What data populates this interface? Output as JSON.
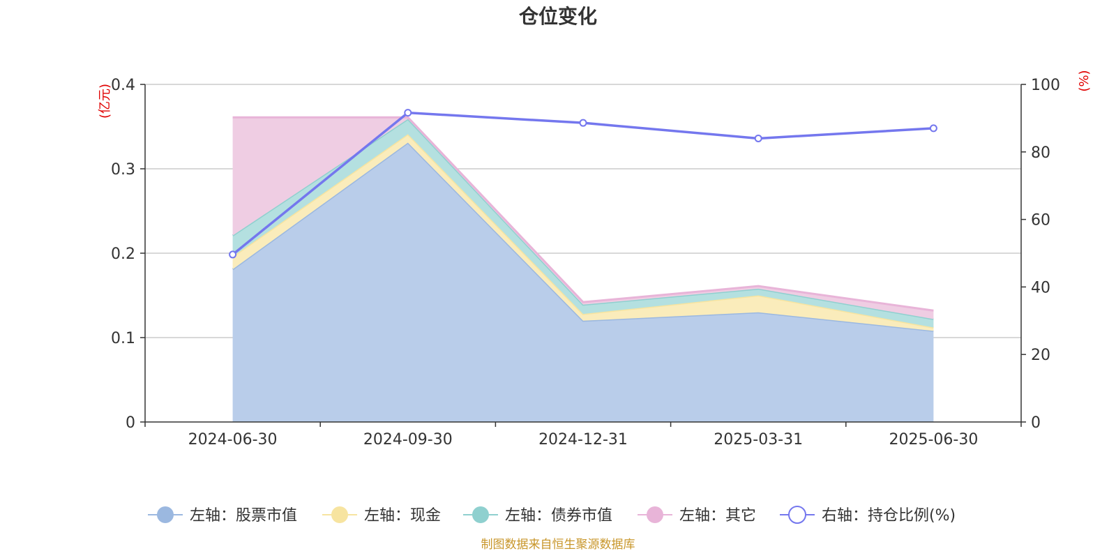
{
  "chart_data": {
    "type": "area",
    "title": "仓位变化",
    "categories": [
      "2024-06-30",
      "2024-09-30",
      "2024-12-31",
      "2025-03-31",
      "2025-06-30"
    ],
    "left_axis": {
      "unit": "(亿元)",
      "ylim": [
        0,
        0.4
      ],
      "ticks": [
        "0",
        "0.1",
        "0.2",
        "0.3",
        "0.4"
      ],
      "tick_values": [
        0,
        0.1,
        0.2,
        0.3,
        0.4
      ]
    },
    "right_axis": {
      "unit": "(%)",
      "ylim": [
        0,
        100
      ],
      "ticks": [
        "0",
        "20",
        "40",
        "60",
        "80",
        "100"
      ],
      "tick_values": [
        0,
        20,
        40,
        60,
        80,
        100
      ]
    },
    "stacked": true,
    "series": [
      {
        "name": "左轴：股票市值",
        "axis": "left",
        "color": "#9bb8e0",
        "fill": "#b9cdea",
        "values": [
          0.181,
          0.331,
          0.12,
          0.13,
          0.108
        ]
      },
      {
        "name": "左轴：现金",
        "axis": "left",
        "color": "#f7e4a0",
        "fill": "#faecbb",
        "values": [
          0.015,
          0.01,
          0.008,
          0.02,
          0.004
        ]
      },
      {
        "name": "左轴：债券市值",
        "axis": "left",
        "color": "#8fd0cf",
        "fill": "#b4e0e0",
        "values": [
          0.025,
          0.018,
          0.011,
          0.008,
          0.01
        ]
      },
      {
        "name": "左轴：其它",
        "axis": "left",
        "color": "#e8b4d8",
        "fill": "#efcde3",
        "values": [
          0.14,
          0.002,
          0.003,
          0.003,
          0.01
        ]
      },
      {
        "name": "右轴：持仓比例(%)",
        "axis": "right",
        "type": "line",
        "color": "#7477ee",
        "values": [
          49.6,
          91.6,
          88.6,
          84.0,
          87.0
        ]
      }
    ],
    "grid": true,
    "legend_position": "bottom",
    "source": "制图数据来自恒生聚源数据库"
  }
}
